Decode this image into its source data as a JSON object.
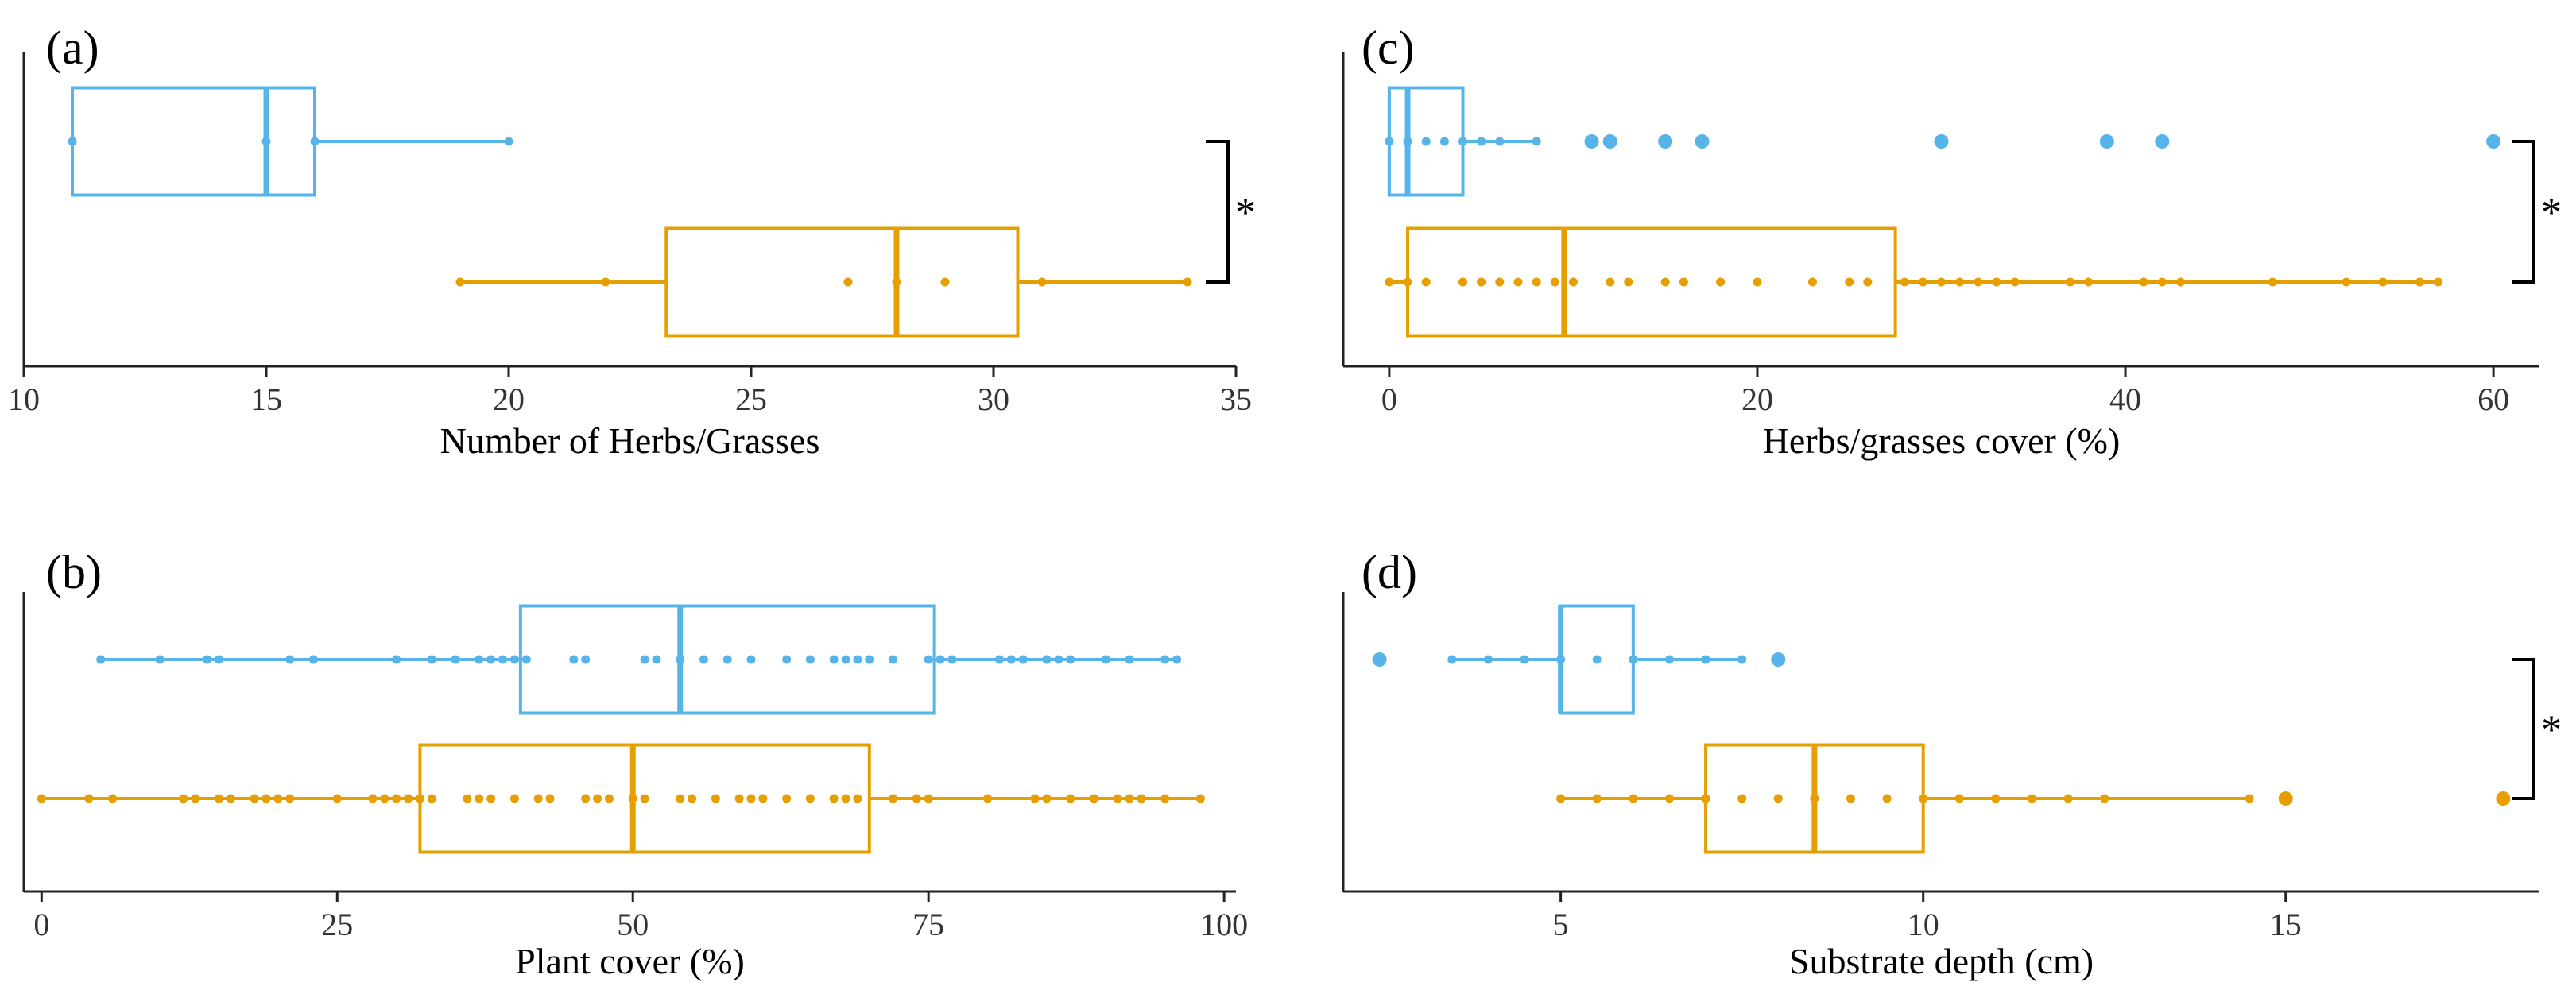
{
  "colors": {
    "group1": "#56B4E9",
    "group2": "#E69F00"
  },
  "significance_mark": "*",
  "chart_data": [
    {
      "id": "a",
      "type": "boxplot",
      "panel_label": "(a)",
      "xlabel": "Number of Herbs/Grasses",
      "xlim": [
        10,
        35
      ],
      "xticks": [
        10,
        15,
        20,
        25,
        30,
        35
      ],
      "significant": true,
      "series": [
        {
          "name": "group1",
          "color": "#56B4E9",
          "whisker_low": 11,
          "q1": 11,
          "median": 15,
          "q3": 16,
          "whisker_high": 20,
          "points": [
            11,
            15,
            16,
            20
          ],
          "outliers": []
        },
        {
          "name": "group2",
          "color": "#E69F00",
          "whisker_low": 19,
          "q1": 23.25,
          "median": 28,
          "q3": 30.5,
          "whisker_high": 34,
          "points": [
            19,
            22,
            27,
            28,
            29,
            31,
            34
          ],
          "outliers": []
        }
      ]
    },
    {
      "id": "b",
      "type": "boxplot",
      "panel_label": "(b)",
      "xlabel": "Plant cover (%)",
      "xlim": [
        -1.5,
        101
      ],
      "xticks": [
        0,
        25,
        50,
        75,
        100
      ],
      "significant": false,
      "series": [
        {
          "name": "group1",
          "color": "#56B4E9",
          "whisker_low": 5,
          "q1": 40.5,
          "median": 54,
          "q3": 75.5,
          "whisker_high": 96,
          "points": [
            5,
            10,
            14,
            15,
            21,
            23,
            30,
            33,
            35,
            37,
            38,
            39,
            40,
            41,
            45,
            46,
            51,
            52,
            54,
            56,
            58,
            60,
            63,
            65,
            67,
            68,
            69,
            70,
            72,
            75,
            76,
            77,
            81,
            82,
            83,
            85,
            86,
            87,
            90,
            92,
            95,
            96
          ],
          "outliers": []
        },
        {
          "name": "group2",
          "color": "#E69F00",
          "whisker_low": 0,
          "q1": 32,
          "median": 50,
          "q3": 70,
          "whisker_high": 98,
          "points": [
            0,
            4,
            6,
            12,
            13,
            15,
            16,
            18,
            19,
            20,
            21,
            25,
            28,
            29,
            30,
            31,
            32,
            33,
            36,
            37,
            38,
            40,
            42,
            43,
            46,
            47,
            48,
            50,
            51,
            54,
            55,
            57,
            59,
            60,
            61,
            63,
            65,
            67,
            68,
            69,
            72,
            74,
            75,
            80,
            84,
            85,
            87,
            89,
            91,
            92,
            93,
            95,
            98
          ],
          "outliers": []
        }
      ]
    },
    {
      "id": "c",
      "type": "boxplot",
      "panel_label": "(c)",
      "xlabel": "Herbs/grasses cover (%)",
      "xlim": [
        -2.5,
        62.5
      ],
      "xticks": [
        0,
        20,
        40,
        60
      ],
      "significant": true,
      "series": [
        {
          "name": "group1",
          "color": "#56B4E9",
          "whisker_low": 0,
          "q1": 0,
          "median": 1,
          "q3": 4,
          "whisker_high": 8,
          "points": [
            0,
            1,
            2,
            3,
            4,
            5,
            6,
            8
          ],
          "outliers": [
            11,
            12,
            15,
            17,
            30,
            39,
            42,
            60
          ]
        },
        {
          "name": "group2",
          "color": "#E69F00",
          "whisker_low": 0,
          "q1": 1,
          "median": 9.5,
          "q3": 27.5,
          "whisker_high": 57,
          "points": [
            0,
            1,
            2,
            4,
            5,
            6,
            7,
            8,
            9,
            10,
            12,
            13,
            15,
            16,
            18,
            20,
            23,
            25,
            26,
            28,
            29,
            30,
            31,
            32,
            33,
            34,
            37,
            38,
            41,
            42,
            43,
            48,
            52,
            54,
            56,
            57
          ],
          "outliers": []
        }
      ]
    },
    {
      "id": "d",
      "type": "boxplot",
      "panel_label": "(d)",
      "xlabel": "Substrate depth (cm)",
      "xlim": [
        2.0,
        18.5
      ],
      "xticks": [
        5,
        10,
        15
      ],
      "significant": true,
      "series": [
        {
          "name": "group1",
          "color": "#56B4E9",
          "whisker_low": 3.5,
          "q1": 5,
          "median": 5,
          "q3": 6,
          "whisker_high": 7.5,
          "points": [
            3.5,
            4,
            4.5,
            5,
            5.5,
            6,
            6.5,
            7,
            7.5
          ],
          "outliers": [
            2.5,
            8
          ]
        },
        {
          "name": "group2",
          "color": "#E69F00",
          "whisker_low": 5,
          "q1": 7,
          "median": 8.5,
          "q3": 10,
          "whisker_high": 14.5,
          "points": [
            5,
            5.5,
            6,
            6.5,
            7,
            7.5,
            8,
            8.5,
            9,
            9.5,
            10,
            10.5,
            11,
            11.5,
            12,
            12.5,
            14.5
          ],
          "outliers": [
            15,
            18
          ]
        }
      ]
    }
  ]
}
